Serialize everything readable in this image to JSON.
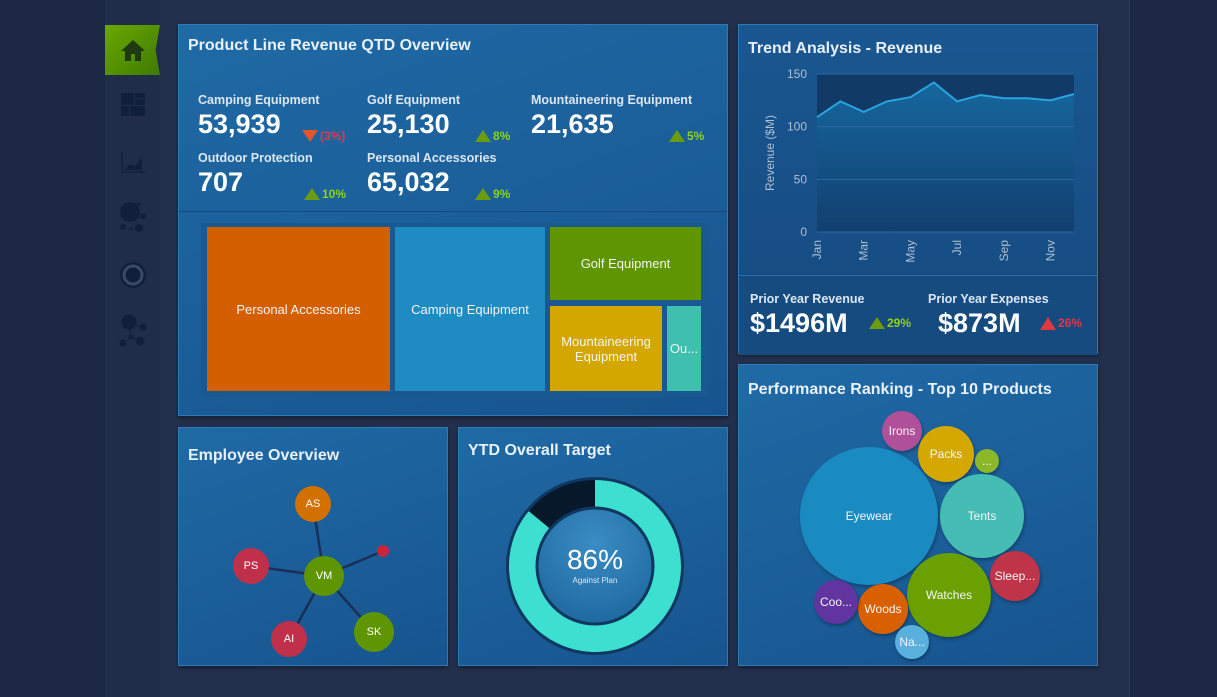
{
  "sidebar": {
    "items": [
      {
        "icon": "home-icon",
        "active": true
      },
      {
        "icon": "treemap-icon"
      },
      {
        "icon": "area-chart-icon"
      },
      {
        "icon": "bubble-icon"
      },
      {
        "icon": "donut-icon"
      },
      {
        "icon": "network-icon"
      }
    ]
  },
  "product_line": {
    "title": "Product Line Revenue QTD Overview",
    "kpis": [
      {
        "label": "Camping Equipment",
        "value": "53,939",
        "delta": "(3%)",
        "trend": "down"
      },
      {
        "label": "Golf Equipment",
        "value": "25,130",
        "delta": "8%",
        "trend": "up"
      },
      {
        "label": "Mountaineering Equipment",
        "value": "21,635",
        "delta": "5%",
        "trend": "up"
      },
      {
        "label": "Outdoor Protection",
        "value": "707",
        "delta": "10%",
        "trend": "up"
      },
      {
        "label": "Personal Accessories",
        "value": "65,032",
        "delta": "9%",
        "trend": "up"
      }
    ],
    "treemap": [
      {
        "label": "Personal Accessories",
        "color": "#d35f00"
      },
      {
        "label": "Camping Equipment",
        "color": "#1e8bc3"
      },
      {
        "label": "Golf Equipment",
        "color": "#5f9600"
      },
      {
        "label": "Mountaineering Equipment",
        "color": "#d4a600"
      },
      {
        "label": "Ou...",
        "color": "#3fbfad"
      }
    ]
  },
  "trend": {
    "title": "Trend Analysis - Revenue",
    "chart_data": {
      "type": "area",
      "ylabel": "Revenue ($M)",
      "ylim": [
        0,
        150
      ],
      "yticks": [
        "0",
        "50",
        "100",
        "150"
      ],
      "x": [
        "Jan",
        "Feb",
        "Mar",
        "Apr",
        "May",
        "Jun",
        "Jul",
        "Aug",
        "Sep",
        "Oct",
        "Nov",
        "Dec"
      ],
      "xtick_labels": [
        "Jan",
        "Mar",
        "May",
        "Jul",
        "Sep",
        "Nov"
      ],
      "values": [
        109,
        124,
        114,
        124,
        128,
        142,
        124,
        130,
        127,
        127,
        125,
        131
      ],
      "grid": true
    }
  },
  "prior": {
    "revenue_label": "Prior Year Revenue",
    "revenue_value": "$1496M",
    "revenue_delta": "29%",
    "expenses_label": "Prior Year Expenses",
    "expenses_value": "$873M",
    "expenses_delta": "26%"
  },
  "employee": {
    "title": "Employee Overview",
    "nodes": [
      "AS",
      "PS",
      "VM",
      "AI",
      "SK"
    ]
  },
  "ytd": {
    "title": "YTD Overall Target",
    "percent": 86,
    "percent_label": "86%",
    "caption": "Against Plan"
  },
  "ranking": {
    "title": "Performance Ranking - Top 10 Products",
    "bubbles": [
      {
        "label": "Eyewear",
        "color": "#1a8bc0"
      },
      {
        "label": "Irons",
        "color": "#b0509a"
      },
      {
        "label": "Packs",
        "color": "#d4a800"
      },
      {
        "label": "...",
        "color": "#8ab82a"
      },
      {
        "label": "Tents",
        "color": "#45bdb5"
      },
      {
        "label": "Sleep...",
        "color": "#c0344a"
      },
      {
        "label": "Watches",
        "color": "#6aa000"
      },
      {
        "label": "Woods",
        "color": "#d86000"
      },
      {
        "label": "Coo...",
        "color": "#6035a0"
      },
      {
        "label": "Na...",
        "color": "#5ab0dc"
      }
    ]
  }
}
